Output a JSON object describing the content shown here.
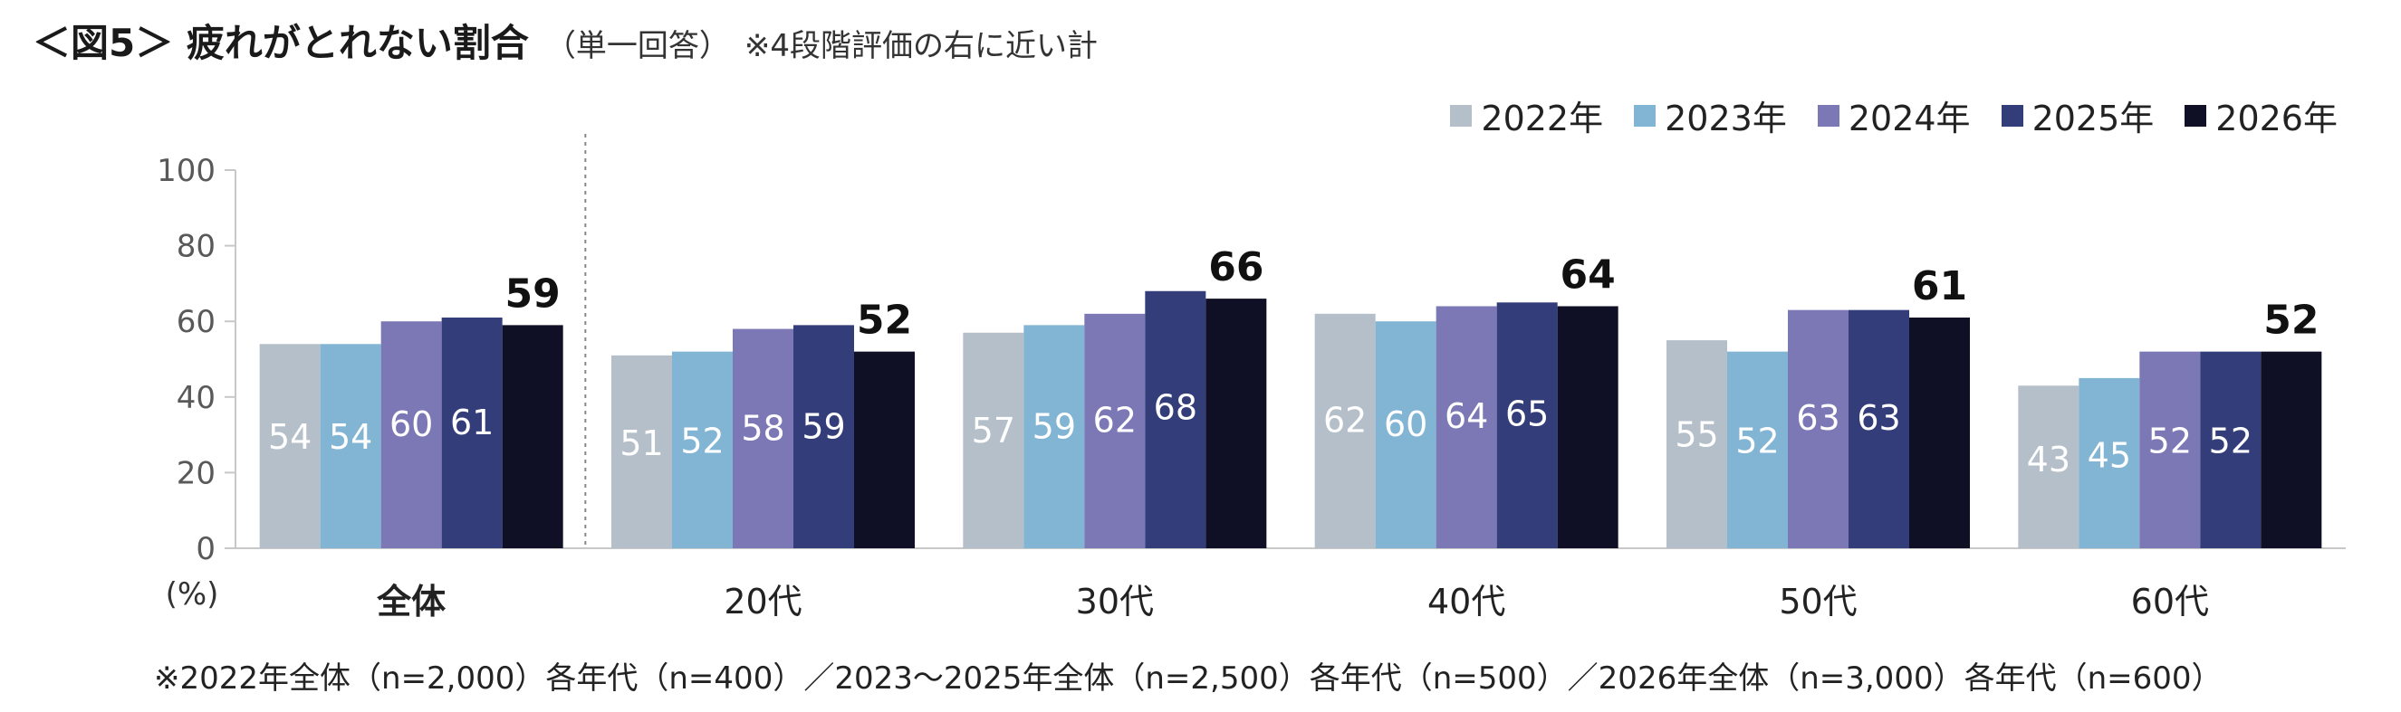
{
  "title": {
    "main": "＜図5＞ 疲れがとれない割合",
    "sub": "（単一回答）",
    "note": "※4段階評価の右に近い計"
  },
  "chart_data": {
    "type": "bar",
    "title": "疲れがとれない割合",
    "ylabel": "(%)",
    "xlabel": "",
    "ylim": [
      0,
      100
    ],
    "yticks": [
      "0",
      "20",
      "40",
      "60",
      "80",
      "100"
    ],
    "categories": [
      "全体",
      "20代",
      "30代",
      "40代",
      "50代",
      "60代"
    ],
    "series": [
      {
        "name": "2022年",
        "color": "#b4bfca",
        "values": [
          54,
          51,
          57,
          62,
          55,
          43
        ]
      },
      {
        "name": "2023年",
        "color": "#82b4d4",
        "values": [
          54,
          52,
          59,
          60,
          52,
          45
        ]
      },
      {
        "name": "2024年",
        "color": "#7b78b5",
        "values": [
          60,
          58,
          62,
          64,
          63,
          52
        ]
      },
      {
        "name": "2025年",
        "color": "#323d7a",
        "values": [
          61,
          59,
          68,
          65,
          63,
          52
        ]
      },
      {
        "name": "2026年",
        "color": "#0f0f25",
        "values": [
          59,
          52,
          66,
          64,
          61,
          52
        ]
      }
    ],
    "legend_position": "top-right",
    "grid": false
  },
  "footnote": "※2022年全体（n=2,000）各年代（n=400）／2023～2025年全体（n=2,500）各年代（n=500）／2026年全体（n=3,000）各年代（n=600）"
}
